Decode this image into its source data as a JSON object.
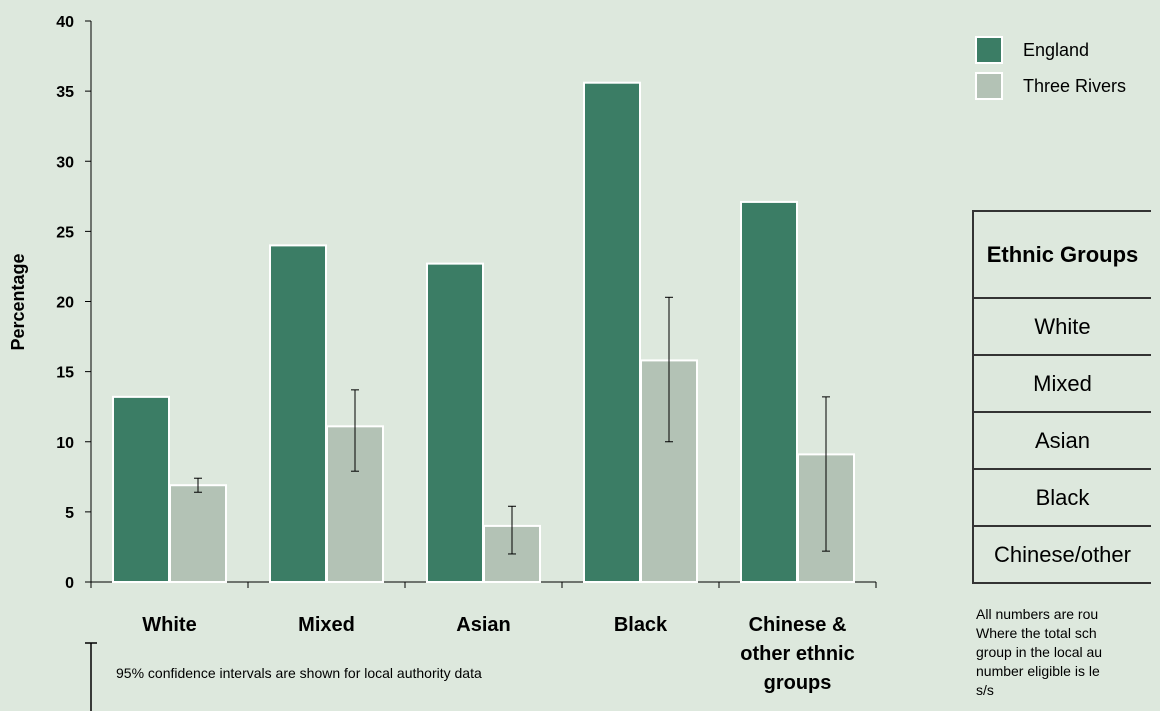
{
  "chart_data": {
    "type": "bar",
    "categories": [
      "White",
      "Mixed",
      "Asian",
      "Black",
      "Chinese & other ethnic groups"
    ],
    "series": [
      {
        "name": "England",
        "values": [
          13.2,
          24.0,
          22.7,
          35.6,
          27.1
        ],
        "color": "#3b7d65"
      },
      {
        "name": "Three Rivers",
        "values": [
          6.9,
          11.1,
          4.0,
          15.8,
          9.1
        ],
        "color": "#b3c2b5",
        "error_low": [
          6.4,
          7.9,
          2.0,
          10.0,
          2.2
        ],
        "error_high": [
          7.4,
          13.7,
          5.4,
          20.3,
          13.2
        ]
      }
    ],
    "ylabel": "Percentage",
    "xlabel": "",
    "ylim": [
      0,
      40
    ],
    "yticks": [
      0,
      5,
      10,
      15,
      20,
      25,
      30,
      35,
      40
    ],
    "grid": false,
    "legend_position": "top-right"
  },
  "note": "95% confidence intervals are shown for local authority data",
  "table": {
    "header": "Ethnic Groups",
    "rows": [
      "White",
      "Mixed",
      "Asian",
      "Black",
      "Chinese/other"
    ]
  },
  "footnote_lines": [
    "All numbers are rou",
    "Where the total sch",
    "group in the local au",
    "number eligible is le",
    "s/s"
  ]
}
